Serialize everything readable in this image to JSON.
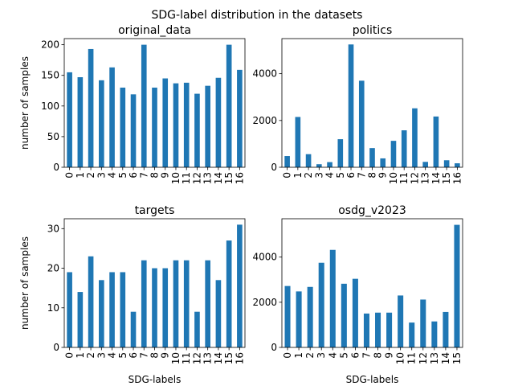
{
  "figure": {
    "suptitle": "SDG-label distribution in the datasets"
  },
  "chart_data": [
    {
      "type": "bar",
      "title": "original_data",
      "xlabel": "",
      "ylabel": "number of samples",
      "ylim": [
        0,
        210
      ],
      "yticks": [
        0,
        50,
        100,
        150,
        200
      ],
      "color": "#1f77b4",
      "categories": [
        "0",
        "1",
        "2",
        "3",
        "4",
        "5",
        "6",
        "7",
        "8",
        "9",
        "10",
        "11",
        "12",
        "13",
        "14",
        "15",
        "16"
      ],
      "values": [
        155,
        147,
        193,
        142,
        163,
        130,
        119,
        200,
        130,
        145,
        137,
        138,
        120,
        133,
        146,
        200,
        159
      ]
    },
    {
      "type": "bar",
      "title": "politics",
      "xlabel": "",
      "ylabel": "",
      "ylim": [
        0,
        5500
      ],
      "yticks": [
        0,
        2000,
        4000
      ],
      "color": "#1f77b4",
      "categories": [
        "0",
        "1",
        "2",
        "3",
        "4",
        "5",
        "6",
        "7",
        "8",
        "9",
        "10",
        "11",
        "12",
        "13",
        "14",
        "15",
        "16"
      ],
      "values": [
        480,
        2150,
        560,
        130,
        220,
        1200,
        5250,
        3700,
        820,
        380,
        1130,
        1580,
        2520,
        230,
        2170,
        300,
        170
      ]
    },
    {
      "type": "bar",
      "title": "targets",
      "xlabel": "SDG-labels",
      "ylabel": "number of samples",
      "ylim": [
        0,
        32.5
      ],
      "yticks": [
        0,
        10,
        20,
        30
      ],
      "color": "#1f77b4",
      "categories": [
        "0",
        "1",
        "2",
        "3",
        "4",
        "5",
        "6",
        "7",
        "8",
        "9",
        "10",
        "11",
        "12",
        "13",
        "14",
        "15",
        "16"
      ],
      "values": [
        19,
        14,
        23,
        17,
        19,
        19,
        9,
        22,
        20,
        20,
        22,
        22,
        9,
        22,
        17,
        27,
        31
      ]
    },
    {
      "type": "bar",
      "title": "osdg_v2023",
      "xlabel": "SDG-labels",
      "ylabel": "",
      "ylim": [
        0,
        5700
      ],
      "yticks": [
        0,
        2000,
        4000
      ],
      "color": "#1f77b4",
      "categories": [
        "0",
        "1",
        "2",
        "3",
        "4",
        "5",
        "6",
        "7",
        "8",
        "9",
        "10",
        "11",
        "12",
        "13",
        "14",
        "15"
      ],
      "values": [
        2720,
        2480,
        2680,
        3750,
        4320,
        2820,
        3040,
        1500,
        1540,
        1540,
        2300,
        1100,
        2120,
        1150,
        1570,
        5430
      ]
    }
  ]
}
